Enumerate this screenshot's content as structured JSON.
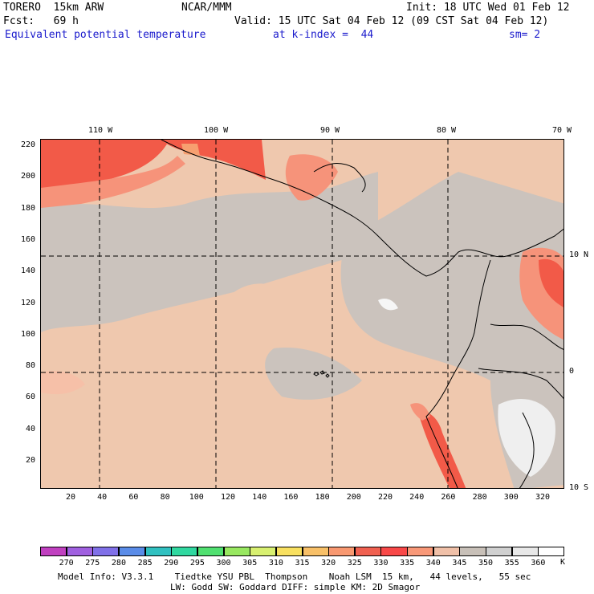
{
  "header": {
    "model": "TORERO  15km ARW",
    "center": "NCAR/MMM",
    "init": "Init: 18 UTC Wed 01 Feb 12",
    "fcst": "Fcst:   69 h",
    "valid": "Valid: 15 UTC Sat 04 Feb 12 (09 CST Sat 04 Feb 12)",
    "field": "Equivalent potential temperature",
    "level": "at k-index =  44",
    "smooth": "sm= 2"
  },
  "top_lon_labels": [
    "110 W",
    "100 W",
    "90 W",
    "80 W",
    "70 W"
  ],
  "right_lat_labels": [
    "10 N",
    "0",
    "10 S"
  ],
  "y_ticks": [
    "220",
    "200",
    "180",
    "160",
    "140",
    "120",
    "100",
    "80",
    "60",
    "40",
    "20"
  ],
  "x_ticks": [
    "20",
    "40",
    "60",
    "80",
    "100",
    "120",
    "140",
    "160",
    "180",
    "200",
    "220",
    "240",
    "260",
    "280",
    "300",
    "320"
  ],
  "colorbar": {
    "labels": [
      "270",
      "275",
      "280",
      "285",
      "290",
      "295",
      "300",
      "305",
      "310",
      "315",
      "320",
      "325",
      "330",
      "335",
      "340",
      "345",
      "350",
      "355",
      "360"
    ],
    "unit": "K",
    "colors": [
      "#c040c0",
      "#a060e0",
      "#8070e8",
      "#5a8ce8",
      "#30c0c0",
      "#30d8a0",
      "#50e070",
      "#98e860",
      "#d8f070",
      "#f8e060",
      "#f8c068",
      "#f89870",
      "#f06050",
      "#f84848",
      "#f89878",
      "#f0c0a8",
      "#c8c0b8",
      "#d0d0d0",
      "#e8e8e8",
      "#ffffff"
    ]
  },
  "footer": {
    "line1": "Model Info: V3.3.1    Tiedtke YSU PBL  Thompson    Noah LSM  15 km,   44 levels,   55 sec",
    "line2": "LW: Godd SW: Goddard DIFF: simple KM: 2D Smagor"
  }
}
